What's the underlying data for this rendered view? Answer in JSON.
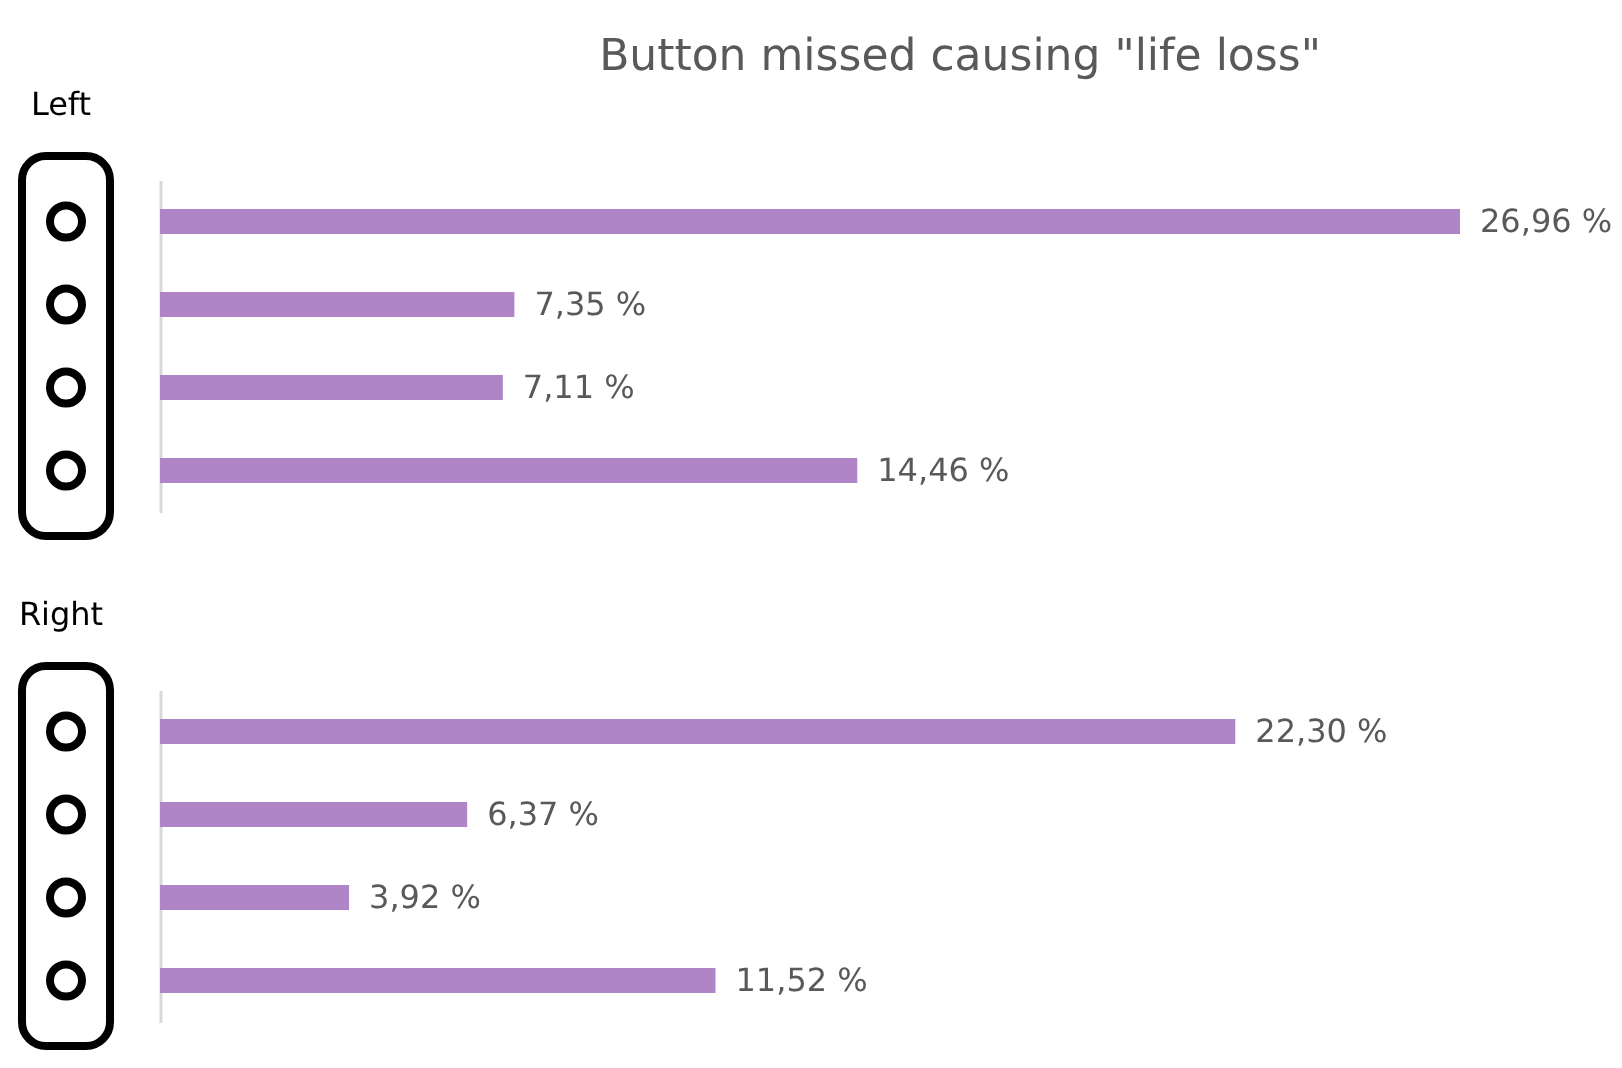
{
  "chart_data": [
    {
      "type": "bar",
      "orientation": "horizontal",
      "title": "Button missed causing \"life loss\"",
      "ylabel": "Left",
      "categories": [
        null,
        null,
        null,
        null
      ],
      "values": [
        26.96,
        7.35,
        7.11,
        14.46
      ],
      "value_labels": [
        "26,96 %",
        "7,35 %",
        "7,11 %",
        "14,46 %"
      ],
      "color": "#b085c8"
    },
    {
      "type": "bar",
      "orientation": "horizontal",
      "ylabel": "Right",
      "categories": [
        null,
        null,
        null,
        null
      ],
      "values": [
        22.3,
        6.37,
        3.92,
        11.52
      ],
      "value_labels": [
        "22,30 %",
        "6,37 %",
        "3,92 %",
        "11,52 %"
      ],
      "color": "#b085c8"
    }
  ]
}
